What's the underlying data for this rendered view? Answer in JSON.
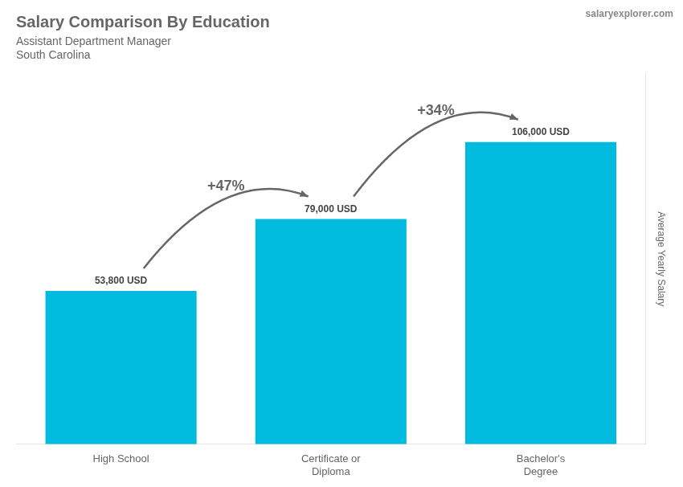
{
  "chart_data": {
    "type": "bar",
    "title": "Salary Comparison By Education",
    "subtitle": [
      "Assistant Department Manager",
      "South Carolina"
    ],
    "watermark": "salaryexplorer.com",
    "ylabel": "Average Yearly Salary",
    "categories": [
      "High School",
      "Certificate or\nDiploma",
      "Bachelor's\nDegree"
    ],
    "values": [
      53800,
      79000,
      106000
    ],
    "value_labels": [
      "53,800 USD",
      "79,000 USD",
      "106,000 USD"
    ],
    "data_labels": true,
    "annotations": [
      "+47%",
      "+34%"
    ],
    "color": "#00bbdd",
    "ylim": [
      0,
      130000
    ],
    "grid": false,
    "tick_labels": "x"
  }
}
